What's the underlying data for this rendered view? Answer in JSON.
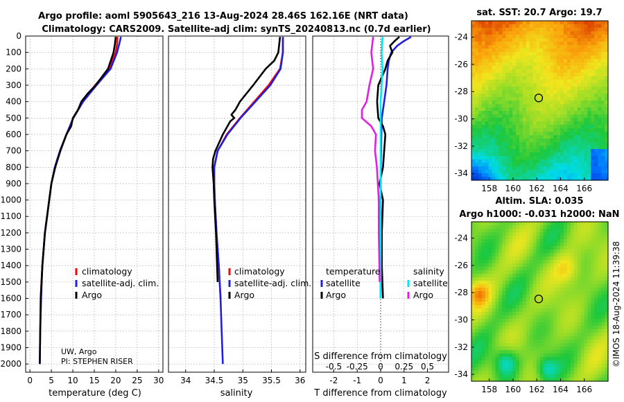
{
  "titles": {
    "line1": "Argo profile: aoml 5905643_216 13-Aug-2024 28.46S 162.16E (NRT data)",
    "line2": "Climatology: CARS2009. Satellite-adj clim: synTS_20240813.nc (0.7d earlier)"
  },
  "colors": {
    "argo": "#000000",
    "climatology": "#ff0000",
    "satellite": "#1f1fe0",
    "sat_s": "#00e5ee",
    "argo_s": "#e020e0",
    "grid": "#b0b0b0"
  },
  "depth_axis": {
    "ticks": [
      "0",
      "100",
      "200",
      "300",
      "400",
      "500",
      "600",
      "700",
      "800",
      "900",
      "1000",
      "1100",
      "1200",
      "1300",
      "1400",
      "1500",
      "1600",
      "1700",
      "1800",
      "1900",
      "2000"
    ],
    "max": 2050
  },
  "chart_data": [
    {
      "type": "line",
      "name": "temperature",
      "xlabel": "temperature (deg C)",
      "xlim": [
        -1,
        31
      ],
      "xticks": [
        "0",
        "5",
        "10",
        "15",
        "20",
        "25",
        "30"
      ],
      "ylim": [
        0,
        2050
      ],
      "legend": [
        "climatology",
        "satellite-adj. clim.",
        "Argo"
      ],
      "note": [
        "UW, Argo",
        "PI: STEPHEN RISER"
      ],
      "series": [
        {
          "name": "climatology",
          "depth": [
            5,
            50,
            100,
            200,
            300,
            400,
            500,
            600,
            700,
            800,
            900,
            1000,
            1200,
            1400,
            1600
          ],
          "values": [
            20.4,
            20.3,
            20.0,
            18.5,
            15.2,
            12.3,
            10.1,
            8.5,
            7.0,
            5.8,
            5.0,
            4.5,
            3.5,
            2.9,
            2.5
          ]
        },
        {
          "name": "satellite-adj. clim.",
          "depth": [
            5,
            50,
            100,
            200,
            300,
            400,
            500,
            600,
            700,
            800,
            900,
            1000,
            1200,
            1400,
            1600,
            1800,
            2000
          ],
          "values": [
            21.2,
            20.8,
            20.3,
            18.8,
            15.5,
            12.4,
            10.1,
            8.5,
            7.0,
            5.8,
            5.0,
            4.5,
            3.5,
            2.9,
            2.6,
            2.4,
            2.3
          ]
        },
        {
          "name": "Argo",
          "depth": [
            5,
            50,
            100,
            200,
            300,
            350,
            400,
            450,
            500,
            550,
            600,
            700,
            800,
            900,
            1000,
            1200,
            1400,
            1600,
            1800,
            2000
          ],
          "values": [
            20.0,
            19.8,
            19.5,
            18.2,
            15.3,
            13.5,
            12.0,
            11.2,
            10.0,
            9.6,
            8.5,
            7.1,
            5.9,
            5.0,
            4.5,
            3.5,
            2.9,
            2.5,
            2.4,
            2.3
          ]
        }
      ]
    },
    {
      "type": "line",
      "name": "salinity",
      "xlabel": "salinity",
      "xlim": [
        33.7,
        36.1
      ],
      "xticks": [
        "34",
        "34.5",
        "35",
        "35.5",
        "36"
      ],
      "ylim": [
        0,
        2050
      ],
      "legend": [
        "climatology",
        "satellite-adj. clim.",
        "Argo"
      ],
      "series": [
        {
          "name": "climatology",
          "depth": [
            5,
            100,
            200,
            300,
            400,
            500,
            600,
            700,
            800,
            900,
            1000,
            1200,
            1400,
            1600
          ],
          "values": [
            35.7,
            35.7,
            35.65,
            35.45,
            35.2,
            34.95,
            34.72,
            34.56,
            34.5,
            34.5,
            34.51,
            34.54,
            34.58,
            34.61
          ]
        },
        {
          "name": "satellite-adj. clim.",
          "depth": [
            5,
            100,
            200,
            300,
            400,
            500,
            600,
            700,
            800,
            900,
            1000,
            1200,
            1400,
            1600,
            1800,
            2000
          ],
          "values": [
            35.7,
            35.7,
            35.66,
            35.48,
            35.22,
            34.96,
            34.73,
            34.56,
            34.5,
            34.5,
            34.51,
            34.54,
            34.58,
            34.61,
            34.63,
            34.65
          ]
        },
        {
          "name": "Argo",
          "depth": [
            5,
            100,
            150,
            200,
            300,
            400,
            450,
            480,
            500,
            520,
            600,
            700,
            750,
            800,
            900,
            1000,
            1200,
            1400,
            1500
          ],
          "values": [
            35.65,
            35.62,
            35.55,
            35.4,
            35.18,
            34.95,
            34.87,
            34.8,
            34.85,
            34.78,
            34.65,
            34.52,
            34.48,
            34.47,
            34.49,
            34.5,
            34.53,
            34.55,
            34.56
          ]
        }
      ]
    },
    {
      "type": "line",
      "name": "difference",
      "xlabel": "T difference from climatology",
      "xlim": [
        -2.9,
        2.9
      ],
      "xticks": [
        "-2",
        "-1",
        "0",
        "1",
        "2"
      ],
      "top_xlabel": "S difference from climatology",
      "top_xticks": [
        "-0.5",
        "-0.25",
        "0",
        "0.25",
        "0.5"
      ],
      "s_scale": 4,
      "ylim": [
        0,
        2050
      ],
      "legend_t": [
        "temperature",
        "satellite",
        "Argo"
      ],
      "legend_s": [
        "salinity",
        "satellite",
        "Argo"
      ],
      "series": [
        {
          "name": "T satellite",
          "depth": [
            5,
            30,
            60,
            100,
            150,
            200,
            300,
            400,
            500,
            600,
            700,
            800,
            1000,
            1500,
            1600
          ],
          "values": [
            1.3,
            1.0,
            0.7,
            0.45,
            0.35,
            0.3,
            0.25,
            0.15,
            0.05,
            0.03,
            0.02,
            0.01,
            0,
            0,
            0
          ]
        },
        {
          "name": "T Argo",
          "depth": [
            5,
            30,
            60,
            100,
            150,
            200,
            300,
            400,
            500,
            550,
            600,
            700,
            800,
            900,
            1000,
            1200,
            1400,
            1600
          ],
          "values": [
            0.8,
            0.6,
            0.4,
            0.5,
            0.3,
            0.2,
            -0.1,
            -0.15,
            -0.1,
            0.1,
            0.2,
            0.15,
            0.1,
            -0.05,
            0.1,
            0.05,
            0.05,
            0.1
          ]
        },
        {
          "name": "S satellite",
          "depth": [
            5,
            100,
            200,
            300,
            400,
            500,
            600,
            800,
            1000,
            1600
          ],
          "values": [
            0.02,
            0.01,
            0.02,
            0.01,
            0,
            0,
            0,
            0,
            0,
            0
          ]
        },
        {
          "name": "S Argo",
          "depth": [
            5,
            100,
            200,
            300,
            400,
            450,
            500,
            550,
            600,
            700,
            800,
            1000,
            1200,
            1500
          ],
          "values": [
            -0.08,
            -0.1,
            -0.08,
            -0.12,
            -0.15,
            -0.2,
            -0.2,
            -0.1,
            -0.05,
            -0.06,
            -0.04,
            -0.02,
            -0.02,
            -0.01
          ]
        }
      ]
    },
    {
      "type": "heatmap",
      "name": "sst-map",
      "title": "sat. SST: 20.7 Argo: 19.7",
      "xlim": [
        156.5,
        168
      ],
      "ylim": [
        -34.5,
        -22.8
      ],
      "xticks": [
        "158",
        "160",
        "162",
        "164",
        "166"
      ],
      "yticks": [
        "-24",
        "-26",
        "-28",
        "-30",
        "-32",
        "-34"
      ],
      "float": {
        "lon": 162.16,
        "lat": -28.46
      }
    },
    {
      "type": "heatmap",
      "name": "sla-map",
      "title1": "Altim. SLA: 0.035",
      "title2": "Argo h1000: -0.031 h2000: NaN",
      "xlim": [
        156.5,
        168
      ],
      "ylim": [
        -34.5,
        -22.8
      ],
      "xticks": [
        "158",
        "160",
        "162",
        "164",
        "166"
      ],
      "yticks": [
        "-24",
        "-26",
        "-28",
        "-30",
        "-32",
        "-34"
      ],
      "float": {
        "lon": 162.16,
        "lat": -28.46
      }
    }
  ],
  "watermark": "©IMOS 18-Aug-2024 11:39:38"
}
